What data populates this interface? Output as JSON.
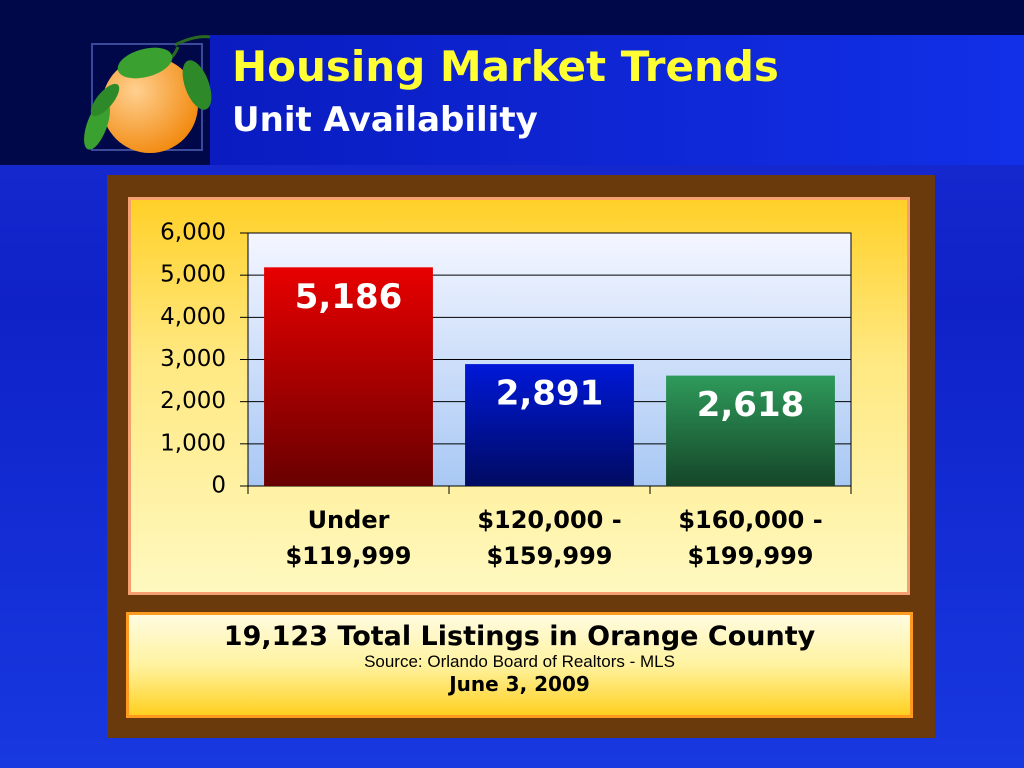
{
  "header": {
    "title": "Housing Market Trends",
    "subtitle": "Unit Availability"
  },
  "chart_data": {
    "type": "bar",
    "categories": [
      "Under $119,999",
      "$120,000 - $159,999",
      "$160,000 - $199,999"
    ],
    "values": [
      5186,
      2891,
      2618
    ],
    "value_labels": [
      "5,186",
      "2,891",
      "2,618"
    ],
    "colors": [
      "#e80000",
      "#0018d8",
      "#2e9a5a"
    ],
    "ylim": [
      0,
      6000
    ],
    "yticks": [
      0,
      {
        "value": 1000,
        "label": "1,000"
      },
      {
        "value": 2000,
        "label": "2,000"
      },
      {
        "value": 3000,
        "label": "3,000"
      },
      {
        "value": 4000,
        "label": "4,000"
      },
      {
        "value": 5000,
        "label": "5,000"
      },
      {
        "value": 6000,
        "label": "6,000"
      }
    ],
    "grid": true
  },
  "footer": {
    "total": "19,123 Total Listings in Orange County",
    "source": "Source: Orlando Board of Realtors - MLS",
    "date": "June 3, 2009"
  }
}
